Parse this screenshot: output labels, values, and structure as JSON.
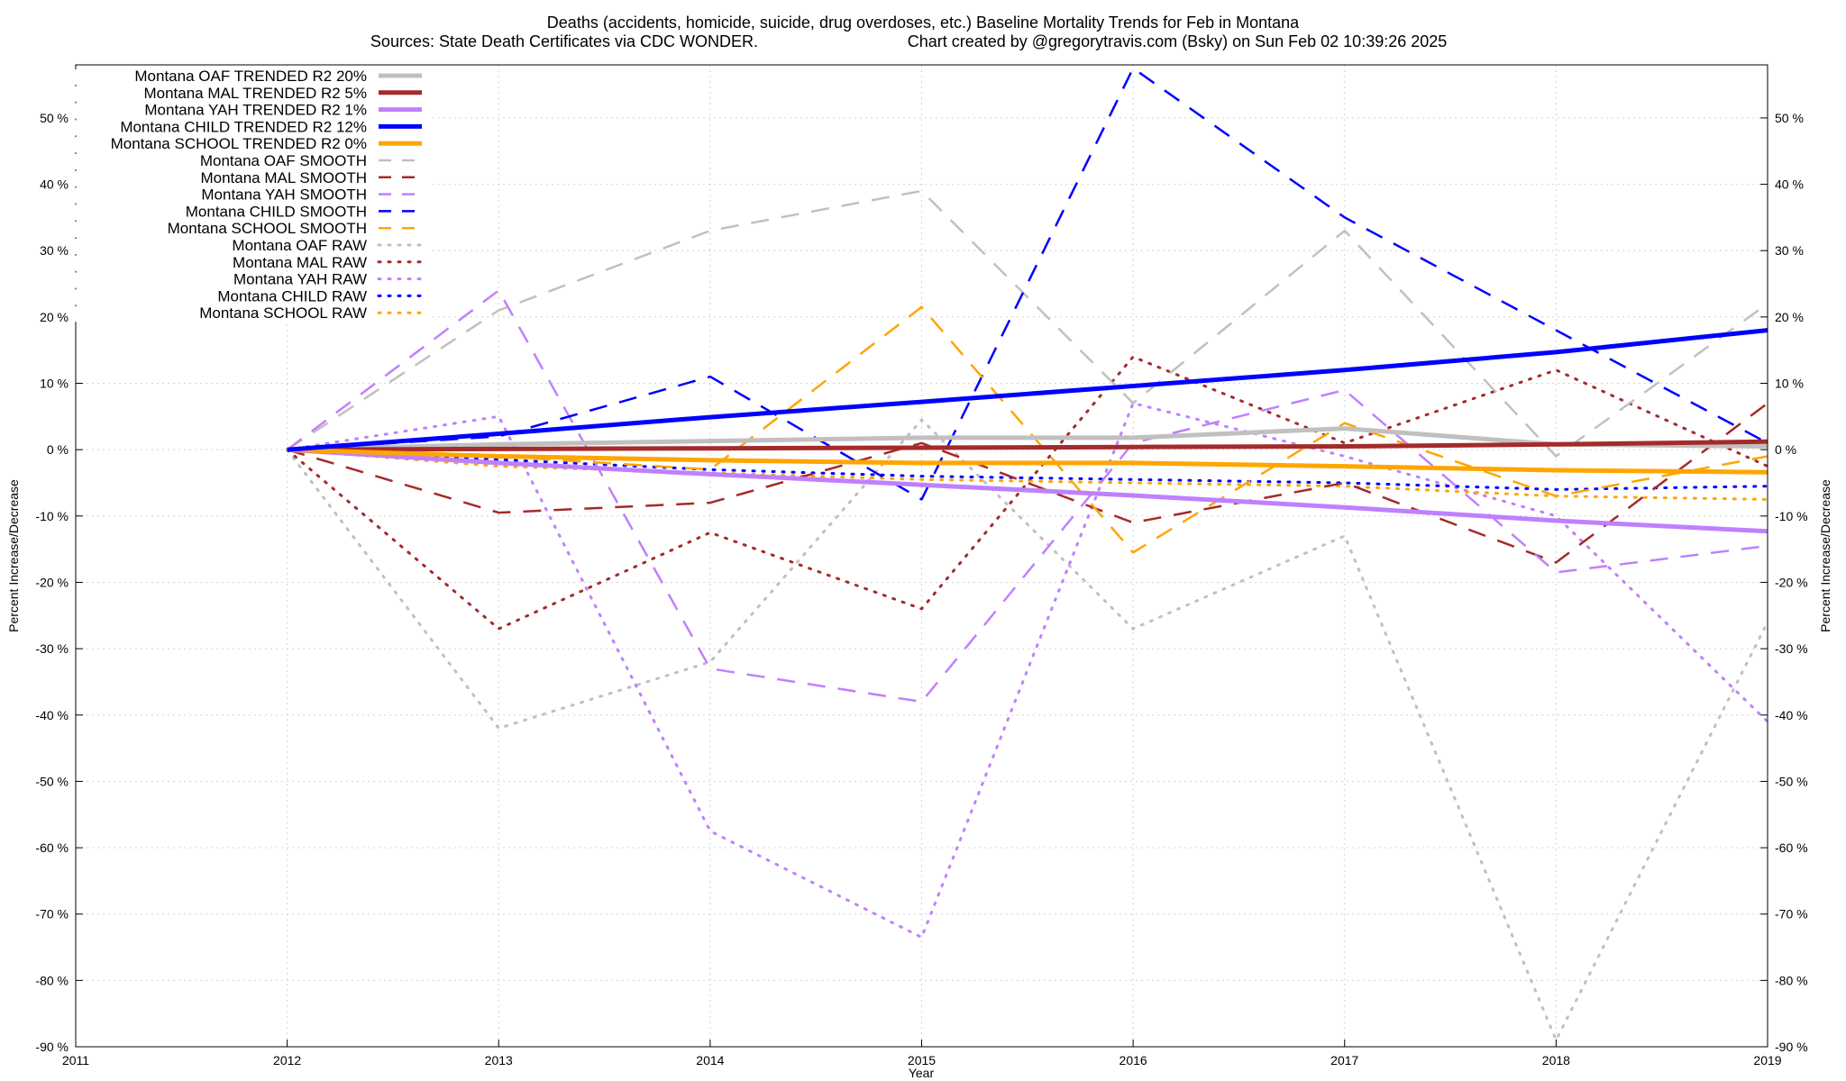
{
  "chart_data": {
    "type": "line",
    "title": "Deaths (accidents, homicide, suicide, drug overdoses, etc.)  Baseline Mortality Trends for Feb in Montana",
    "subtitle_left": "Sources: State Death Certificates via CDC WONDER.",
    "subtitle_right": "Chart created by @gregorytravis.com (Bsky) on Sun Feb 02 10:39:26 2025",
    "xlabel": "Year",
    "ylabel": "Percent Increase/Decrease",
    "xlim": [
      2011,
      2019
    ],
    "ylim": [
      -90,
      58
    ],
    "x_ticks": [
      {
        "v": 2011,
        "label": "2011"
      },
      {
        "v": 2012,
        "label": "2012"
      },
      {
        "v": 2013,
        "label": "2013"
      },
      {
        "v": 2014,
        "label": "2014"
      },
      {
        "v": 2015,
        "label": "2015"
      },
      {
        "v": 2016,
        "label": "2016"
      },
      {
        "v": 2017,
        "label": "2017"
      },
      {
        "v": 2018,
        "label": "2018"
      },
      {
        "v": 2019,
        "label": "2019"
      }
    ],
    "y_ticks": [
      {
        "v": 50,
        "label": "50 %"
      },
      {
        "v": 40,
        "label": "40 %"
      },
      {
        "v": 30,
        "label": "30 %"
      },
      {
        "v": 20,
        "label": "20 %"
      },
      {
        "v": 10,
        "label": "10 %"
      },
      {
        "v": 0,
        "label": "0 %"
      },
      {
        "v": -10,
        "label": "-10 %"
      },
      {
        "v": -20,
        "label": "-20 %"
      },
      {
        "v": -30,
        "label": "-30 %"
      },
      {
        "v": -40,
        "label": "-40 %"
      },
      {
        "v": -50,
        "label": "-50 %"
      },
      {
        "v": -60,
        "label": "-60 %"
      },
      {
        "v": -70,
        "label": "-70 %"
      },
      {
        "v": -80,
        "label": "-80 %"
      },
      {
        "v": -90,
        "label": "-90 %"
      }
    ],
    "grid": true,
    "legend_position": "top-left",
    "series": [
      {
        "name": "Montana OAF TRENDED R2  20%",
        "color": "#c0c0c0",
        "style": "solid",
        "width": 5,
        "x": [
          2012,
          2013,
          2014,
          2015,
          2016,
          2017,
          2018,
          2019
        ],
        "y": [
          0,
          0.8,
          1.3,
          1.8,
          1.8,
          3.2,
          0.8,
          0.5
        ]
      },
      {
        "name": "Montana MAL TRENDED R2   5%",
        "color": "#a52a2a",
        "style": "solid",
        "width": 5,
        "x": [
          2012,
          2013,
          2014,
          2015,
          2016,
          2017,
          2018,
          2019
        ],
        "y": [
          0,
          0.1,
          0.2,
          0.3,
          0.4,
          0.5,
          0.8,
          1.2
        ]
      },
      {
        "name": "Montana YAH TRENDED R2   1%",
        "color": "#bf80ff",
        "style": "solid",
        "width": 5,
        "x": [
          2012,
          2013,
          2014,
          2015,
          2016,
          2017,
          2018,
          2019
        ],
        "y": [
          0,
          -2.0,
          -3.7,
          -5.3,
          -6.9,
          -8.7,
          -10.7,
          -12.3
        ]
      },
      {
        "name": "Montana CHILD TRENDED R2  12%",
        "color": "#0000ff",
        "style": "solid",
        "width": 5,
        "x": [
          2012,
          2013,
          2014,
          2015,
          2016,
          2017,
          2018,
          2019
        ],
        "y": [
          0,
          2.4,
          4.9,
          7.2,
          9.6,
          12.0,
          14.7,
          18.0
        ]
      },
      {
        "name": "Montana SCHOOL TRENDED R2   0%",
        "color": "#ffa500",
        "style": "solid",
        "width": 5,
        "x": [
          2012,
          2013,
          2014,
          2015,
          2016,
          2017,
          2018,
          2019
        ],
        "y": [
          0,
          -1.0,
          -1.6,
          -2.0,
          -2.0,
          -2.5,
          -3.1,
          -3.4
        ]
      },
      {
        "name": "Montana OAF SMOOTH",
        "color": "#c0c0c0",
        "style": "dashed",
        "width": 2.5,
        "x": [
          2012,
          2013,
          2014,
          2015,
          2016,
          2017,
          2018,
          2019
        ],
        "y": [
          0,
          21,
          33,
          39,
          7,
          33,
          -1,
          22
        ]
      },
      {
        "name": "Montana MAL SMOOTH",
        "color": "#a52a2a",
        "style": "dashed",
        "width": 2.5,
        "x": [
          2012,
          2013,
          2014,
          2015,
          2016,
          2017,
          2018,
          2019
        ],
        "y": [
          0,
          -9.5,
          -8,
          1,
          -11,
          -5,
          -17,
          7
        ]
      },
      {
        "name": "Montana YAH SMOOTH",
        "color": "#bf80ff",
        "style": "dashed",
        "width": 2.5,
        "x": [
          2012,
          2013,
          2014,
          2015,
          2016,
          2017,
          2018,
          2019
        ],
        "y": [
          0,
          24,
          -33,
          -38,
          1,
          9,
          -18.5,
          -14.5
        ]
      },
      {
        "name": "Montana CHILD SMOOTH",
        "color": "#0000ff",
        "style": "dashed",
        "width": 2.5,
        "x": [
          2012,
          2013,
          2014,
          2015,
          2016,
          2017,
          2018,
          2019
        ],
        "y": [
          0,
          2,
          11,
          -7.5,
          57.5,
          35,
          18,
          1
        ]
      },
      {
        "name": "Montana SCHOOL SMOOTH",
        "color": "#ffa500",
        "style": "dashed",
        "width": 2.5,
        "x": [
          2012,
          2013,
          2014,
          2015,
          2016,
          2017,
          2018,
          2019
        ],
        "y": [
          0,
          -1,
          -3,
          21.5,
          -15.5,
          4,
          -7,
          -1
        ]
      },
      {
        "name": "Montana OAF RAW",
        "color": "#c0c0c0",
        "style": "dotted",
        "width": 3,
        "x": [
          2012,
          2013,
          2014,
          2015,
          2016,
          2017,
          2018,
          2019
        ],
        "y": [
          0,
          -42,
          -32,
          4.5,
          -27,
          -13,
          -89,
          -26
        ]
      },
      {
        "name": "Montana MAL RAW",
        "color": "#a52a2a",
        "style": "dotted",
        "width": 3,
        "x": [
          2012,
          2013,
          2014,
          2015,
          2016,
          2017,
          2018,
          2019
        ],
        "y": [
          0,
          -27,
          -12.5,
          -24,
          14,
          1,
          12,
          -2.5
        ]
      },
      {
        "name": "Montana YAH RAW",
        "color": "#bf80ff",
        "style": "dotted",
        "width": 3,
        "x": [
          2012,
          2013,
          2014,
          2015,
          2016,
          2017,
          2018,
          2019
        ],
        "y": [
          0,
          5,
          -57.5,
          -73.5,
          7,
          -1,
          -10,
          -41
        ]
      },
      {
        "name": "Montana CHILD RAW",
        "color": "#0000ff",
        "style": "dotted",
        "width": 3,
        "x": [
          2012,
          2013,
          2014,
          2015,
          2016,
          2017,
          2018,
          2019
        ],
        "y": [
          0,
          -1.5,
          -3,
          -4,
          -4.5,
          -5,
          -6,
          -5.5
        ]
      },
      {
        "name": "Montana SCHOOL RAW",
        "color": "#ffa500",
        "style": "dotted",
        "width": 3,
        "x": [
          2012,
          2013,
          2014,
          2015,
          2016,
          2017,
          2018,
          2019
        ],
        "y": [
          0,
          -2.5,
          -3.5,
          -4.5,
          -5,
          -5.5,
          -7,
          -7.5
        ]
      }
    ]
  }
}
